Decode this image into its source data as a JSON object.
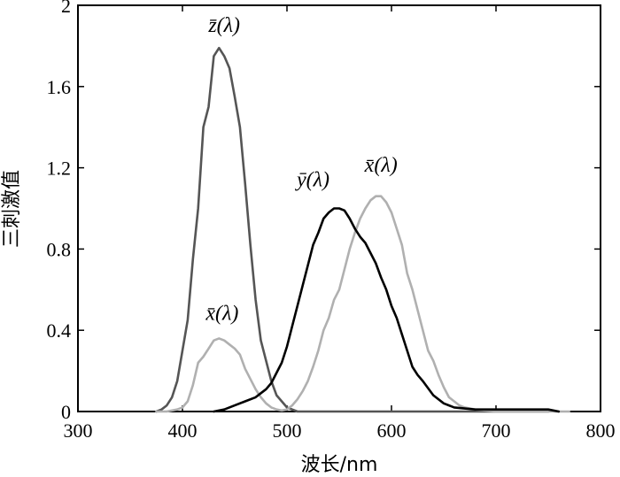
{
  "chart_data": {
    "type": "line",
    "title": "",
    "xlabel": "波长/nm",
    "ylabel": "三刺激值",
    "xlim": [
      300,
      800
    ],
    "ylim": [
      0,
      2
    ],
    "xticks": [
      300,
      400,
      500,
      600,
      700,
      800
    ],
    "xtick_labels": [
      "300",
      "400",
      "500",
      "600",
      "700",
      "800"
    ],
    "yticks": [
      0,
      0.4,
      0.8,
      1.2,
      1.6,
      2
    ],
    "ytick_labels": [
      "0",
      "0.4",
      "0.8",
      "1.2",
      "1.6",
      "2"
    ],
    "grid": false,
    "series": [
      {
        "name": "z̄(λ)",
        "color": "#555555",
        "x": [
          375,
          380,
          385,
          390,
          395,
          400,
          405,
          410,
          415,
          420,
          425,
          430,
          435,
          440,
          445,
          450,
          455,
          460,
          465,
          470,
          475,
          480,
          485,
          490,
          495,
          500,
          505,
          510,
          520,
          530,
          550,
          600,
          750
        ],
        "y": [
          0,
          0.01,
          0.03,
          0.07,
          0.15,
          0.3,
          0.45,
          0.75,
          1.0,
          1.4,
          1.5,
          1.75,
          1.79,
          1.75,
          1.69,
          1.55,
          1.4,
          1.12,
          0.82,
          0.55,
          0.35,
          0.25,
          0.15,
          0.08,
          0.05,
          0.02,
          0.01,
          0,
          0,
          0,
          0,
          0,
          0
        ],
        "label_text": "z̄(λ)",
        "label_at": [
          440,
          1.87
        ]
      },
      {
        "name": "x̄(λ)",
        "color": "#b0b0b0",
        "x": [
          375,
          385,
          395,
          400,
          405,
          410,
          415,
          420,
          425,
          430,
          435,
          440,
          445,
          450,
          455,
          460,
          465,
          470,
          475,
          480,
          485,
          490,
          495,
          500,
          505,
          510,
          515,
          520,
          525,
          530,
          535,
          540,
          545,
          550,
          555,
          560,
          565,
          570,
          575,
          580,
          585,
          590,
          595,
          600,
          605,
          610,
          615,
          620,
          625,
          630,
          635,
          640,
          645,
          650,
          655,
          660,
          665,
          670,
          680,
          700,
          720,
          750,
          770
        ],
        "y": [
          0,
          0,
          0.01,
          0.02,
          0.05,
          0.13,
          0.24,
          0.27,
          0.31,
          0.35,
          0.36,
          0.35,
          0.33,
          0.31,
          0.28,
          0.21,
          0.16,
          0.11,
          0.07,
          0.04,
          0.02,
          0.01,
          0.005,
          0.01,
          0.03,
          0.06,
          0.1,
          0.15,
          0.22,
          0.3,
          0.4,
          0.46,
          0.55,
          0.6,
          0.7,
          0.8,
          0.88,
          0.95,
          1.0,
          1.04,
          1.06,
          1.06,
          1.03,
          0.98,
          0.9,
          0.82,
          0.68,
          0.6,
          0.5,
          0.4,
          0.3,
          0.25,
          0.18,
          0.12,
          0.07,
          0.05,
          0.03,
          0.02,
          0.01,
          0,
          0,
          0,
          0
        ],
        "label_text": "x̄(λ)",
        "label_at": [
          438,
          0.45
        ],
        "label2_text": "x̄(λ)",
        "label2_at": [
          590,
          1.18
        ]
      },
      {
        "name": "ȳ(λ)",
        "color": "#000000",
        "x": [
          430,
          440,
          450,
          460,
          470,
          475,
          480,
          485,
          490,
          495,
          500,
          505,
          510,
          515,
          520,
          525,
          530,
          535,
          540,
          545,
          550,
          555,
          560,
          565,
          570,
          575,
          580,
          585,
          590,
          595,
          600,
          605,
          610,
          615,
          620,
          625,
          630,
          640,
          650,
          660,
          680,
          700,
          720,
          740,
          750,
          760
        ],
        "y": [
          0,
          0.01,
          0.03,
          0.05,
          0.07,
          0.09,
          0.11,
          0.14,
          0.19,
          0.24,
          0.32,
          0.42,
          0.52,
          0.62,
          0.72,
          0.82,
          0.88,
          0.95,
          0.98,
          1.0,
          1.0,
          0.99,
          0.95,
          0.9,
          0.86,
          0.83,
          0.78,
          0.73,
          0.66,
          0.6,
          0.52,
          0.46,
          0.38,
          0.3,
          0.22,
          0.18,
          0.15,
          0.08,
          0.04,
          0.02,
          0.01,
          0.01,
          0.01,
          0.01,
          0.01,
          0
        ],
        "label_text": "ȳ(λ)",
        "label_at": [
          525,
          1.11
        ]
      }
    ]
  }
}
